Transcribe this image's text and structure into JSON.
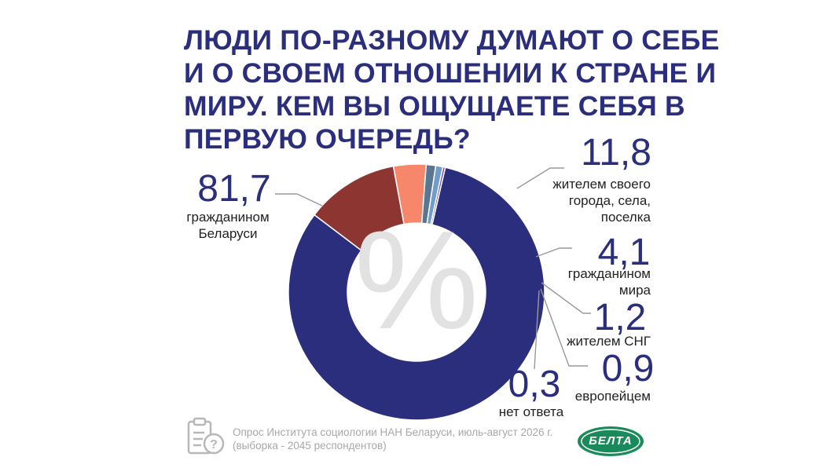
{
  "title_lines": [
    "ЛЮДИ ПО-РАЗНОМУ ДУМАЮТ О СЕБЕ",
    "И О СВОЕМ ОТНОШЕНИИ К СТРАНЕ И",
    "МИРУ. КЕМ ВЫ ОЩУЩАЕТЕ СЕБЯ В",
    "ПЕРВУЮ ОЧЕРЕДЬ?"
  ],
  "chart_data": {
    "type": "pie",
    "title": "ЛЮДИ ПО-РАЗНОМУ ДУМАЮТ О СЕБЕ И О СВОЕМ ОТНОШЕНИИ К СТРАНЕ И МИРУ. КЕМ ВЫ ОЩУЩАЕТЕ СЕБЯ В ПЕРВУЮ ОЧЕРЕДЬ?",
    "center_symbol": "%",
    "slices": [
      {
        "id": "citizen",
        "value": 81.7,
        "value_label": "81,7",
        "label_lines": [
          "гражданином",
          "Беларуси"
        ],
        "color": "#2a2e7c"
      },
      {
        "id": "local",
        "value": 11.8,
        "value_label": "11,8",
        "label_lines": [
          "жителем своего",
          "города, села,",
          "поселка"
        ],
        "color": "#8d3530"
      },
      {
        "id": "world",
        "value": 4.1,
        "value_label": "4,1",
        "label_lines": [
          "гражданином",
          "мира"
        ],
        "color": "#f7876a"
      },
      {
        "id": "cis",
        "value": 1.2,
        "value_label": "1,2",
        "label_lines": [
          "жителем СНГ"
        ],
        "color": "#5a7690"
      },
      {
        "id": "european",
        "value": 0.9,
        "value_label": "0,9",
        "label_lines": [
          "европейцем"
        ],
        "color": "#6f9ccb"
      },
      {
        "id": "no-answer",
        "value": 0.3,
        "value_label": "0,3",
        "label_lines": [
          "нет ответа"
        ],
        "color": "#7b4ba0"
      }
    ]
  },
  "source": {
    "line1": "Опрос Института социологии НАН Беларуси, июль-август 2026 г.",
    "line2": "(выборка - 2045 респондентов)"
  },
  "logo": {
    "text": "БЕЛТА",
    "color": "#1a8a5a"
  },
  "icons": {
    "survey": "clipboard-question-icon"
  }
}
